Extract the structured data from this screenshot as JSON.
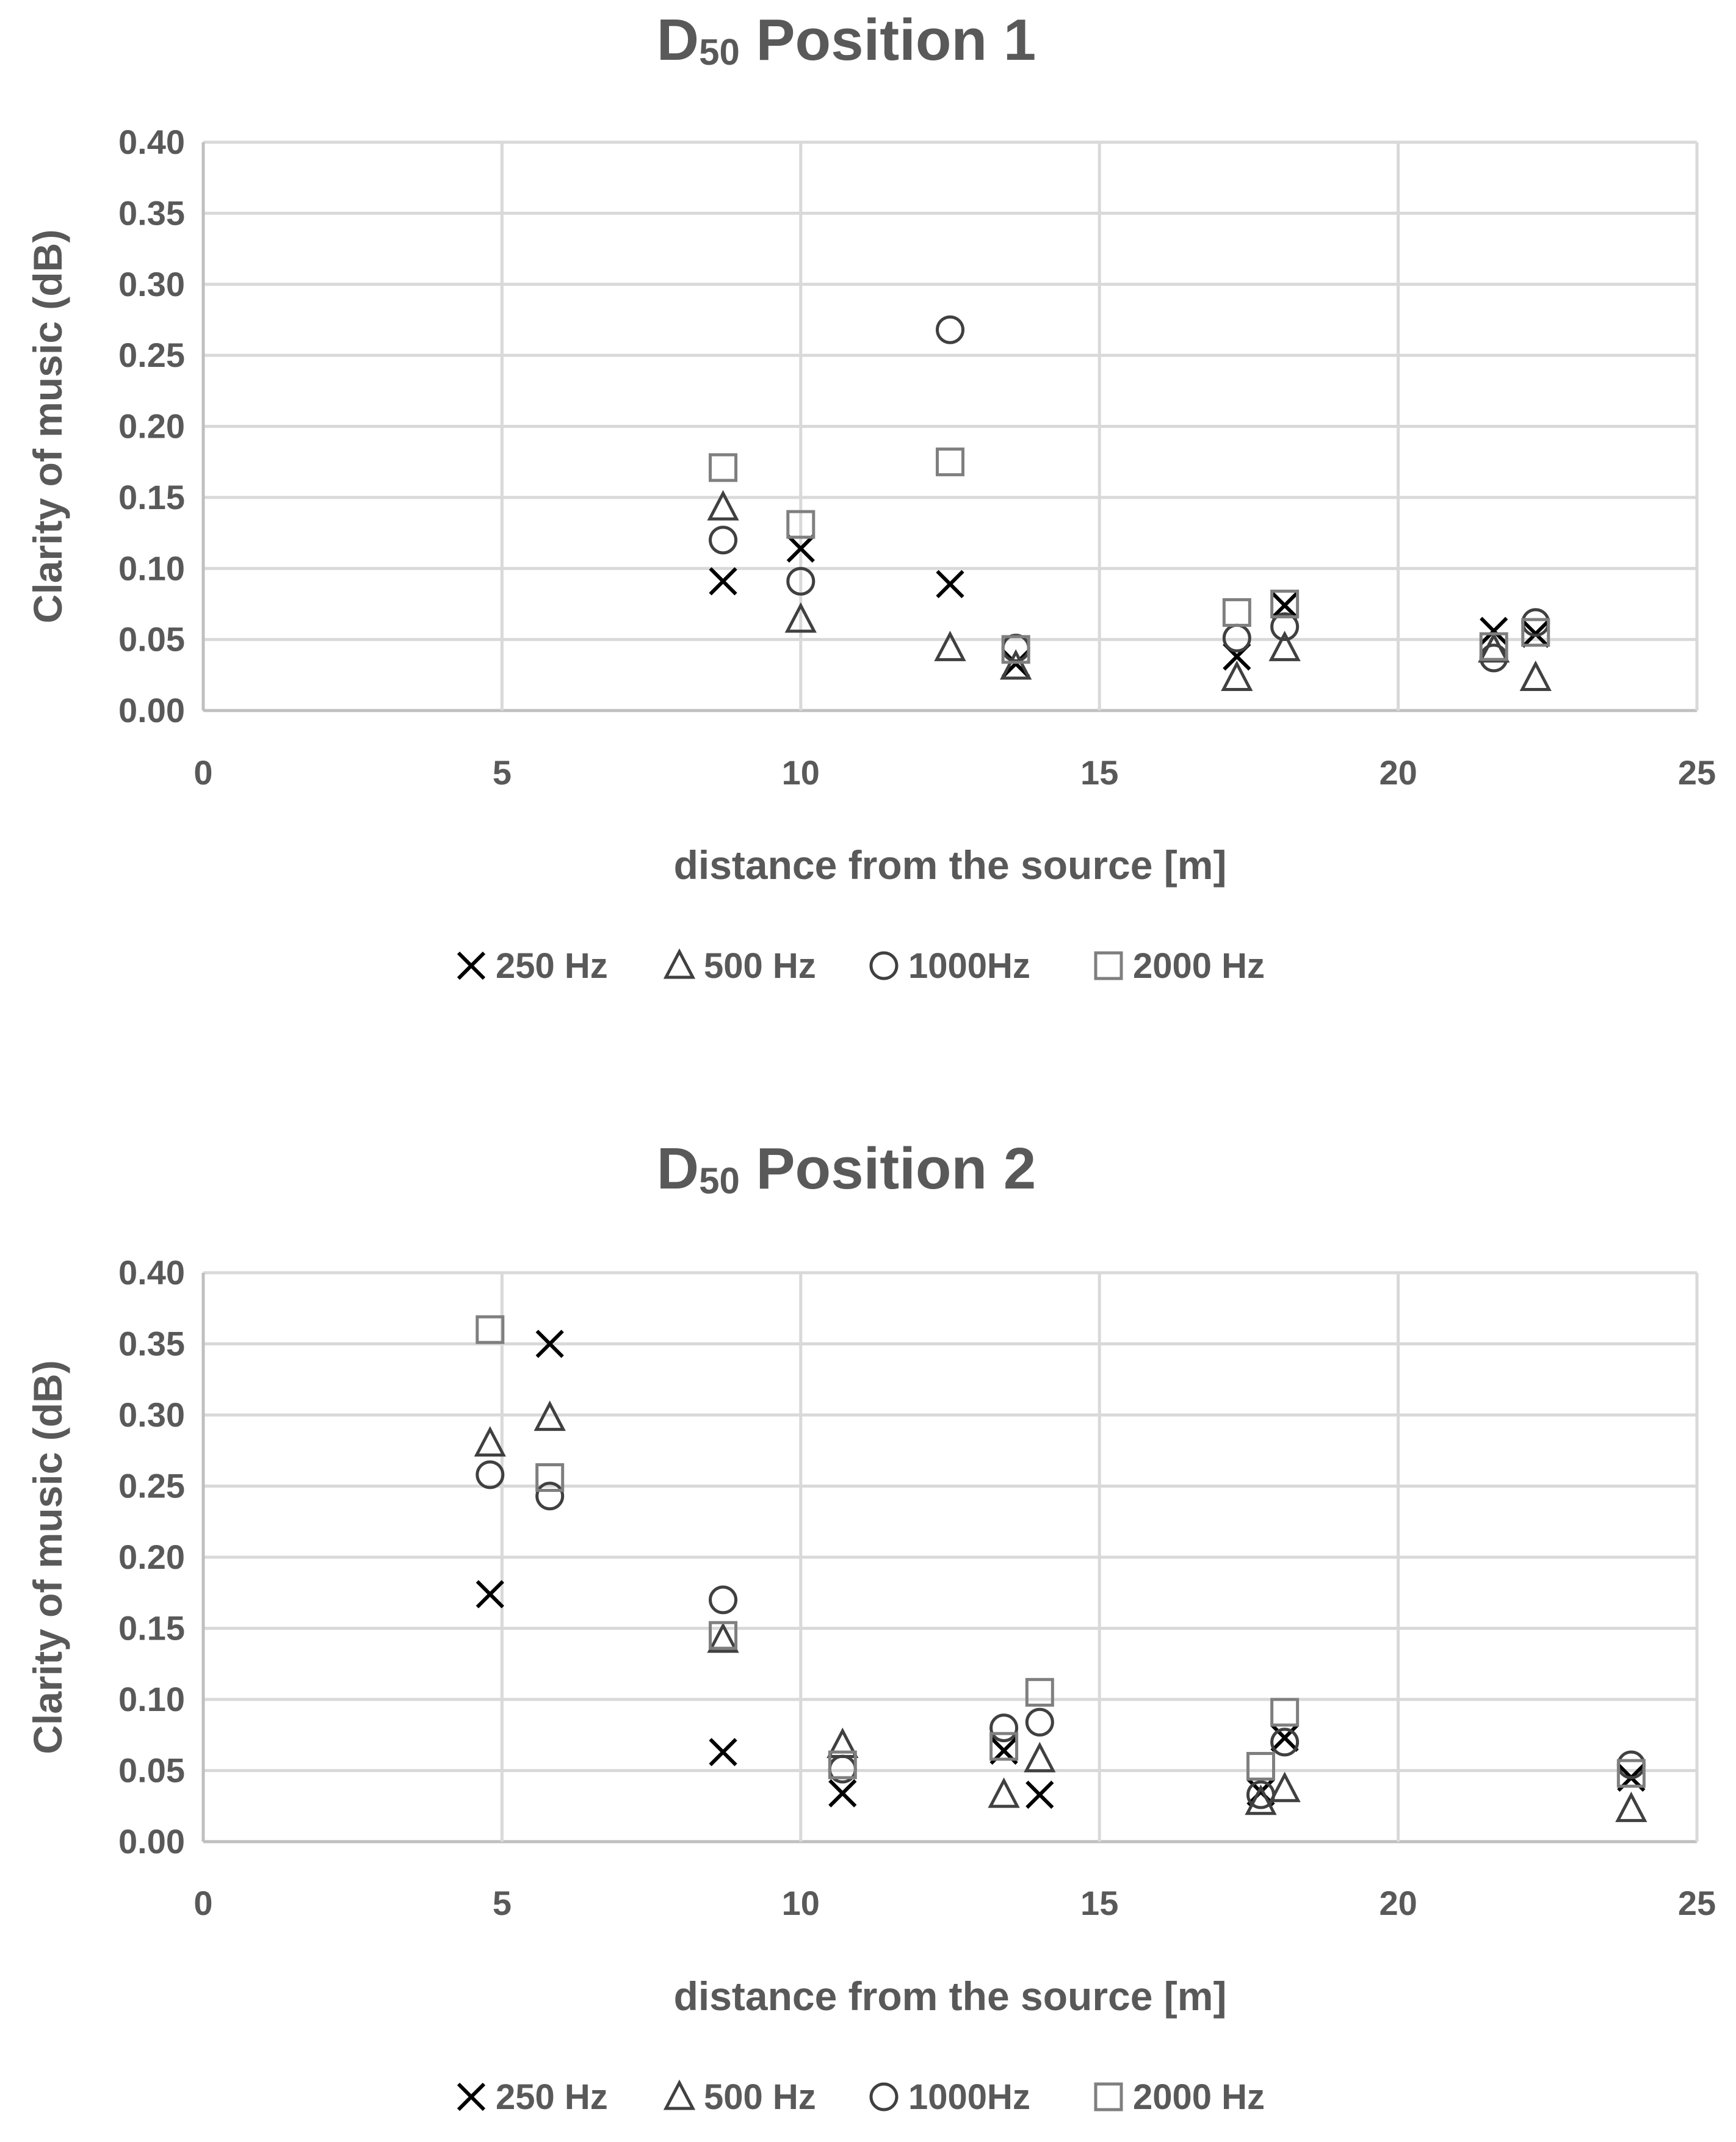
{
  "chart_data": [
    {
      "type": "scatter",
      "title_main": "D",
      "title_sub": "50",
      "title_rest": " Position 1",
      "xlabel": "distance from the source [m]",
      "ylabel": "Clarity of music (dB)",
      "xlim": [
        0,
        25
      ],
      "ylim": [
        0,
        0.4
      ],
      "x_ticks": [
        "0",
        "5",
        "10",
        "15",
        "20",
        "25"
      ],
      "y_ticks": [
        "0.00",
        "0.05",
        "0.10",
        "0.15",
        "0.20",
        "0.25",
        "0.30",
        "0.35",
        "0.40"
      ],
      "grid": true,
      "legend": "bottom",
      "series": [
        {
          "name": "250 Hz",
          "marker": "x",
          "color": "#000000",
          "x": [
            8.7,
            10.0,
            12.5,
            13.6,
            17.3,
            18.1,
            21.6,
            22.3
          ],
          "y": [
            0.091,
            0.114,
            0.089,
            0.033,
            0.038,
            0.074,
            0.056,
            0.054
          ]
        },
        {
          "name": "500 Hz",
          "marker": "triangle",
          "color": "#404040",
          "x": [
            8.7,
            10.0,
            12.5,
            13.6,
            17.3,
            18.1,
            21.6,
            22.3
          ],
          "y": [
            0.143,
            0.064,
            0.044,
            0.031,
            0.023,
            0.044,
            0.043,
            0.023
          ]
        },
        {
          "name": "1000Hz",
          "marker": "circle",
          "color": "#404040",
          "x": [
            8.7,
            10.0,
            12.5,
            13.6,
            17.3,
            18.1,
            21.6,
            22.3
          ],
          "y": [
            0.12,
            0.091,
            0.268,
            0.044,
            0.051,
            0.059,
            0.037,
            0.062
          ]
        },
        {
          "name": "2000 Hz",
          "marker": "square",
          "color": "#7f7f7f",
          "x": [
            8.7,
            10.0,
            12.5,
            13.6,
            17.3,
            18.1,
            21.6,
            22.3
          ],
          "y": [
            0.171,
            0.131,
            0.175,
            0.043,
            0.069,
            0.075,
            0.045,
            0.055
          ]
        }
      ]
    },
    {
      "type": "scatter",
      "title_main": "D",
      "title_sub": "50",
      "title_rest": " Position 2",
      "xlabel": "distance from the source [m]",
      "ylabel": "Clarity of music (dB)",
      "xlim": [
        0,
        25
      ],
      "ylim": [
        0,
        0.4
      ],
      "x_ticks": [
        "0",
        "5",
        "10",
        "15",
        "20",
        "25"
      ],
      "y_ticks": [
        "0.00",
        "0.05",
        "0.10",
        "0.15",
        "0.20",
        "0.25",
        "0.30",
        "0.35",
        "0.40"
      ],
      "grid": true,
      "legend": "bottom",
      "series": [
        {
          "name": "250 Hz",
          "marker": "x",
          "color": "#000000",
          "x": [
            4.8,
            5.8,
            8.7,
            10.7,
            13.4,
            14.0,
            17.7,
            18.1,
            23.9
          ],
          "y": [
            0.174,
            0.35,
            0.063,
            0.034,
            0.064,
            0.033,
            0.035,
            0.073,
            0.045
          ]
        },
        {
          "name": "500 Hz",
          "marker": "triangle",
          "color": "#404040",
          "x": [
            4.8,
            5.8,
            8.7,
            10.7,
            13.4,
            14.0,
            17.7,
            18.1,
            23.9
          ],
          "y": [
            0.28,
            0.298,
            0.142,
            0.068,
            0.033,
            0.058,
            0.028,
            0.037,
            0.023
          ]
        },
        {
          "name": "1000Hz",
          "marker": "circle",
          "color": "#404040",
          "x": [
            4.8,
            5.8,
            8.7,
            10.7,
            13.4,
            14.0,
            17.7,
            18.1,
            23.9
          ],
          "y": [
            0.258,
            0.243,
            0.17,
            0.051,
            0.08,
            0.084,
            0.033,
            0.07,
            0.054
          ]
        },
        {
          "name": "2000 Hz",
          "marker": "square",
          "color": "#7f7f7f",
          "x": [
            4.8,
            5.8,
            8.7,
            10.7,
            13.4,
            14.0,
            17.7,
            18.1,
            23.9
          ],
          "y": [
            0.36,
            0.256,
            0.145,
            0.054,
            0.067,
            0.105,
            0.053,
            0.091,
            0.048
          ]
        }
      ]
    }
  ]
}
